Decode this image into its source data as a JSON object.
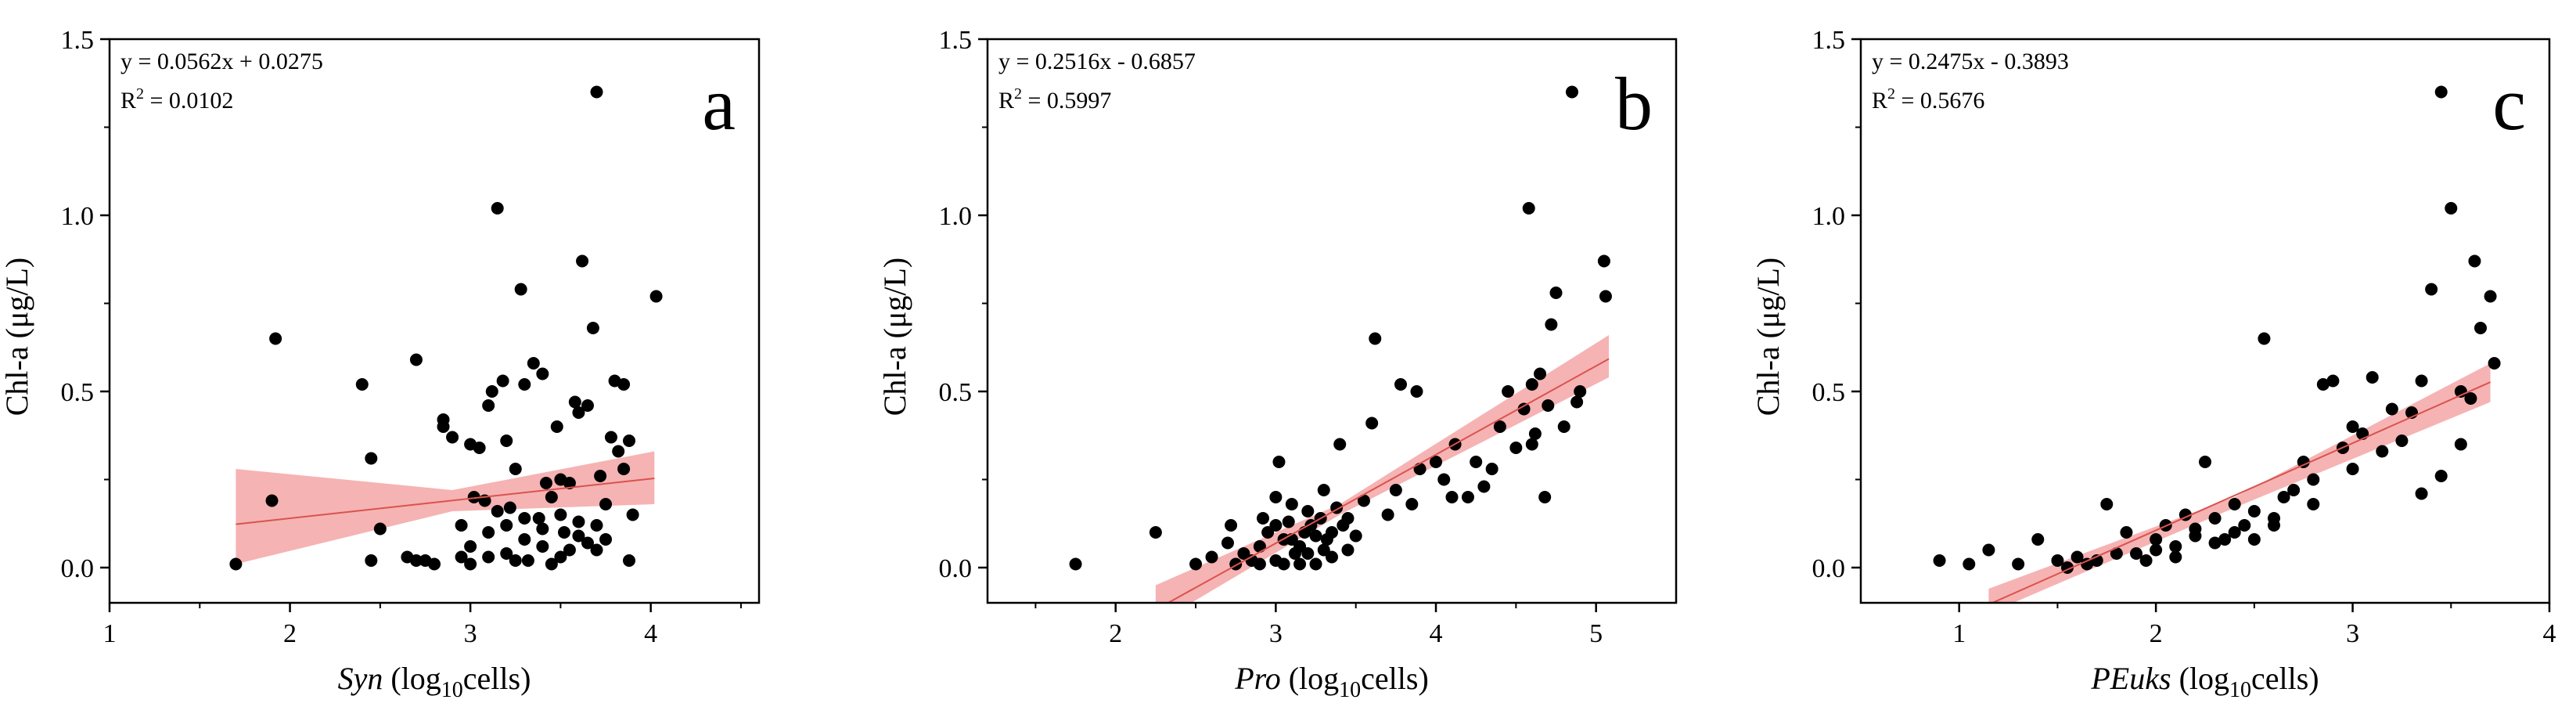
{
  "chart_data": [
    {
      "type": "scatter",
      "panel_letter": "a",
      "xlabel_main": "Syn",
      "xlabel_unit_pre": " (log",
      "xlabel_unit_sub": "10",
      "xlabel_unit_post": "cells)",
      "ylabel": "Chl-a (μg/L)",
      "xlim": [
        1,
        4.6
      ],
      "ylim": [
        -0.1,
        1.5
      ],
      "xticks": [
        1,
        2,
        3,
        4
      ],
      "xtick_labels": [
        "1",
        "2",
        "3",
        "4"
      ],
      "yticks": [
        0,
        0.5,
        1.0,
        1.5
      ],
      "ytick_labels": [
        "0.0",
        "0.5",
        "1.0",
        "1.5"
      ],
      "equation": "y = 0.0562x + 0.0275",
      "r2_label": "R",
      "r2_sup": "2",
      "r2_value": " = 0.0102",
      "fit": {
        "slope": 0.0562,
        "intercept": 0.0275,
        "x_range": [
          1.7,
          4.02
        ]
      },
      "confidence_band": {
        "x": [
          1.7,
          2.9,
          4.02
        ],
        "lower": [
          0.01,
          0.16,
          0.18
        ],
        "upper": [
          0.28,
          0.22,
          0.33
        ]
      },
      "points": [
        [
          1.7,
          0.01
        ],
        [
          1.9,
          0.19
        ],
        [
          1.92,
          0.65
        ],
        [
          2.4,
          0.52
        ],
        [
          2.45,
          0.31
        ],
        [
          2.5,
          0.11
        ],
        [
          2.45,
          0.02
        ],
        [
          2.7,
          0.59
        ],
        [
          2.65,
          0.03
        ],
        [
          2.7,
          0.02
        ],
        [
          2.75,
          0.02
        ],
        [
          2.8,
          0.01
        ],
        [
          2.85,
          0.4
        ],
        [
          2.9,
          0.37
        ],
        [
          2.85,
          0.42
        ],
        [
          2.95,
          0.03
        ],
        [
          2.95,
          0.12
        ],
        [
          3.0,
          0.35
        ],
        [
          3.0,
          0.01
        ],
        [
          3.02,
          0.2
        ],
        [
          3.05,
          0.34
        ],
        [
          3.08,
          0.19
        ],
        [
          3.1,
          0.46
        ],
        [
          3.12,
          0.5
        ],
        [
          3.15,
          1.02
        ],
        [
          3.18,
          0.53
        ],
        [
          3.2,
          0.36
        ],
        [
          3.22,
          0.17
        ],
        [
          3.25,
          0.28
        ],
        [
          3.28,
          0.79
        ],
        [
          3.3,
          0.52
        ],
        [
          3.32,
          0.02
        ],
        [
          3.35,
          0.58
        ],
        [
          3.38,
          0.14
        ],
        [
          3.4,
          0.55
        ],
        [
          3.42,
          0.24
        ],
        [
          3.45,
          0.2
        ],
        [
          3.48,
          0.4
        ],
        [
          3.5,
          0.25
        ],
        [
          3.52,
          0.1
        ],
        [
          3.55,
          0.24
        ],
        [
          3.58,
          0.47
        ],
        [
          3.6,
          0.44
        ],
        [
          3.62,
          0.87
        ],
        [
          3.65,
          0.46
        ],
        [
          3.68,
          0.68
        ],
        [
          3.7,
          1.35
        ],
        [
          3.72,
          0.26
        ],
        [
          3.75,
          0.18
        ],
        [
          3.78,
          0.37
        ],
        [
          3.8,
          0.53
        ],
        [
          3.82,
          0.33
        ],
        [
          3.85,
          0.28
        ],
        [
          3.88,
          0.36
        ],
        [
          3.9,
          0.15
        ],
        [
          3.85,
          0.52
        ],
        [
          3.88,
          0.02
        ],
        [
          3.7,
          0.05
        ],
        [
          4.03,
          0.77
        ],
        [
          3.2,
          0.04
        ],
        [
          3.3,
          0.08
        ],
        [
          3.4,
          0.06
        ],
        [
          3.5,
          0.03
        ],
        [
          3.6,
          0.09
        ],
        [
          3.1,
          0.1
        ],
        [
          3.2,
          0.12
        ],
        [
          3.3,
          0.14
        ],
        [
          3.4,
          0.11
        ],
        [
          3.5,
          0.15
        ],
        [
          3.6,
          0.13
        ],
        [
          3.7,
          0.12
        ],
        [
          3.0,
          0.06
        ],
        [
          3.1,
          0.03
        ],
        [
          3.25,
          0.02
        ],
        [
          3.45,
          0.01
        ],
        [
          3.55,
          0.05
        ],
        [
          3.65,
          0.07
        ],
        [
          3.75,
          0.08
        ],
        [
          3.15,
          0.16
        ]
      ]
    },
    {
      "type": "scatter",
      "panel_letter": "b",
      "xlabel_main": "Pro",
      "xlabel_unit_pre": " (log",
      "xlabel_unit_sub": "10",
      "xlabel_unit_post": "cells)",
      "ylabel": "Chl-a (μg/L)",
      "xlim": [
        1.2,
        5.5
      ],
      "ylim": [
        -0.1,
        1.5
      ],
      "xticks": [
        2,
        3,
        4,
        5
      ],
      "xtick_labels": [
        "2",
        "3",
        "4",
        "5"
      ],
      "yticks": [
        0,
        0.5,
        1.0,
        1.5
      ],
      "ytick_labels": [
        "0.0",
        "0.5",
        "1.0",
        "1.5"
      ],
      "equation": "y = 0.2516x - 0.6857",
      "r2_label": "R",
      "r2_sup": "2",
      "r2_value": " = 0.5997",
      "fit": {
        "slope": 0.2516,
        "intercept": -0.6857,
        "x_range": [
          2.25,
          5.08
        ]
      },
      "confidence_band": {
        "x": [
          2.25,
          3.4,
          5.08
        ],
        "lower": [
          -0.16,
          0.15,
          0.54
        ],
        "upper": [
          -0.05,
          0.18,
          0.66
        ]
      },
      "points": [
        [
          1.75,
          0.01
        ],
        [
          2.25,
          0.1
        ],
        [
          2.5,
          0.01
        ],
        [
          2.6,
          0.03
        ],
        [
          2.7,
          0.07
        ],
        [
          2.72,
          0.12
        ],
        [
          2.75,
          0.01
        ],
        [
          2.8,
          0.04
        ],
        [
          2.85,
          0.02
        ],
        [
          2.9,
          0.06
        ],
        [
          2.92,
          0.14
        ],
        [
          2.95,
          0.1
        ],
        [
          3.0,
          0.02
        ],
        [
          3.0,
          0.2
        ],
        [
          3.02,
          0.3
        ],
        [
          3.05,
          0.08
        ],
        [
          3.08,
          0.13
        ],
        [
          3.1,
          0.18
        ],
        [
          3.12,
          0.04
        ],
        [
          3.15,
          0.06
        ],
        [
          3.18,
          0.1
        ],
        [
          3.2,
          0.16
        ],
        [
          3.22,
          0.12
        ],
        [
          3.25,
          0.09
        ],
        [
          3.28,
          0.14
        ],
        [
          3.3,
          0.22
        ],
        [
          3.32,
          0.08
        ],
        [
          3.35,
          0.03
        ],
        [
          3.38,
          0.17
        ],
        [
          3.4,
          0.35
        ],
        [
          3.42,
          0.12
        ],
        [
          3.45,
          0.05
        ],
        [
          3.5,
          0.09
        ],
        [
          3.55,
          0.19
        ],
        [
          3.6,
          0.41
        ],
        [
          3.62,
          0.65
        ],
        [
          3.7,
          0.15
        ],
        [
          3.75,
          0.22
        ],
        [
          3.78,
          0.52
        ],
        [
          3.85,
          0.18
        ],
        [
          3.88,
          0.5
        ],
        [
          3.9,
          0.28
        ],
        [
          4.0,
          0.3
        ],
        [
          4.05,
          0.25
        ],
        [
          4.1,
          0.2
        ],
        [
          4.12,
          0.35
        ],
        [
          4.2,
          0.2
        ],
        [
          4.25,
          0.3
        ],
        [
          4.3,
          0.23
        ],
        [
          4.35,
          0.28
        ],
        [
          4.4,
          0.4
        ],
        [
          4.45,
          0.5
        ],
        [
          4.5,
          0.34
        ],
        [
          4.55,
          0.45
        ],
        [
          4.58,
          1.02
        ],
        [
          4.6,
          0.52
        ],
        [
          4.62,
          0.38
        ],
        [
          4.65,
          0.55
        ],
        [
          4.68,
          0.2
        ],
        [
          4.7,
          0.46
        ],
        [
          4.72,
          0.69
        ],
        [
          4.75,
          0.78
        ],
        [
          4.8,
          0.4
        ],
        [
          4.85,
          1.35
        ],
        [
          4.88,
          0.47
        ],
        [
          4.9,
          0.5
        ],
        [
          5.05,
          0.87
        ],
        [
          5.06,
          0.77
        ],
        [
          3.0,
          0.12
        ],
        [
          3.1,
          0.08
        ],
        [
          3.2,
          0.04
        ],
        [
          3.3,
          0.05
        ],
        [
          2.9,
          0.01
        ],
        [
          3.05,
          0.01
        ],
        [
          3.15,
          0.01
        ],
        [
          3.25,
          0.01
        ],
        [
          3.35,
          0.1
        ],
        [
          3.45,
          0.14
        ],
        [
          4.6,
          0.35
        ]
      ]
    },
    {
      "type": "scatter",
      "panel_letter": "c",
      "xlabel_main": "PEuks",
      "xlabel_unit_pre": " (log",
      "xlabel_unit_sub": "10",
      "xlabel_unit_post": "cells)",
      "ylabel": "Chl-a (μg/L)",
      "xlim": [
        0.5,
        4.0
      ],
      "ylim": [
        -0.1,
        1.5
      ],
      "xticks": [
        1,
        2,
        3,
        4
      ],
      "xtick_labels": [
        "1",
        "2",
        "3",
        "4"
      ],
      "yticks": [
        0,
        0.5,
        1.0,
        1.5
      ],
      "ytick_labels": [
        "0.0",
        "0.5",
        "1.0",
        "1.5"
      ],
      "equation": "y = 0.2475x - 0.3893",
      "r2_label": "R",
      "r2_sup": "2",
      "r2_value": " = 0.5676",
      "fit": {
        "slope": 0.2475,
        "intercept": -0.3893,
        "x_range": [
          1.15,
          3.7
        ]
      },
      "confidence_band": {
        "x": [
          1.15,
          2.4,
          3.7
        ],
        "lower": [
          -0.13,
          0.17,
          0.47
        ],
        "upper": [
          -0.06,
          0.2,
          0.58
        ]
      },
      "points": [
        [
          0.9,
          0.02
        ],
        [
          1.05,
          0.01
        ],
        [
          1.15,
          0.05
        ],
        [
          1.3,
          0.01
        ],
        [
          1.4,
          0.08
        ],
        [
          1.5,
          0.02
        ],
        [
          1.6,
          0.03
        ],
        [
          1.7,
          0.02
        ],
        [
          1.75,
          0.18
        ],
        [
          1.8,
          0.04
        ],
        [
          1.85,
          0.1
        ],
        [
          1.9,
          0.04
        ],
        [
          2.0,
          0.08
        ],
        [
          2.05,
          0.12
        ],
        [
          2.1,
          0.06
        ],
        [
          2.15,
          0.15
        ],
        [
          2.2,
          0.11
        ],
        [
          2.25,
          0.3
        ],
        [
          2.3,
          0.14
        ],
        [
          2.35,
          0.08
        ],
        [
          2.4,
          0.18
        ],
        [
          2.45,
          0.12
        ],
        [
          2.5,
          0.16
        ],
        [
          2.55,
          0.65
        ],
        [
          2.6,
          0.14
        ],
        [
          2.65,
          0.2
        ],
        [
          2.7,
          0.22
        ],
        [
          2.75,
          0.3
        ],
        [
          2.8,
          0.25
        ],
        [
          2.85,
          0.52
        ],
        [
          2.9,
          0.53
        ],
        [
          2.95,
          0.34
        ],
        [
          3.0,
          0.4
        ],
        [
          3.05,
          0.38
        ],
        [
          3.1,
          0.54
        ],
        [
          3.15,
          0.33
        ],
        [
          3.2,
          0.45
        ],
        [
          3.25,
          0.36
        ],
        [
          3.3,
          0.44
        ],
        [
          3.35,
          0.53
        ],
        [
          3.4,
          0.79
        ],
        [
          3.45,
          1.35
        ],
        [
          3.5,
          1.02
        ],
        [
          3.55,
          0.5
        ],
        [
          3.6,
          0.48
        ],
        [
          3.62,
          0.87
        ],
        [
          3.65,
          0.68
        ],
        [
          3.7,
          0.77
        ],
        [
          3.72,
          0.58
        ],
        [
          3.35,
          0.21
        ],
        [
          3.45,
          0.26
        ],
        [
          3.55,
          0.35
        ],
        [
          2.0,
          0.05
        ],
        [
          2.1,
          0.03
        ],
        [
          2.2,
          0.09
        ],
        [
          2.3,
          0.07
        ],
        [
          2.4,
          0.1
        ],
        [
          2.5,
          0.08
        ],
        [
          2.6,
          0.12
        ],
        [
          1.95,
          0.02
        ],
        [
          1.65,
          0.01
        ],
        [
          1.55,
          0.0
        ],
        [
          2.8,
          0.18
        ],
        [
          3.0,
          0.28
        ]
      ]
    }
  ]
}
